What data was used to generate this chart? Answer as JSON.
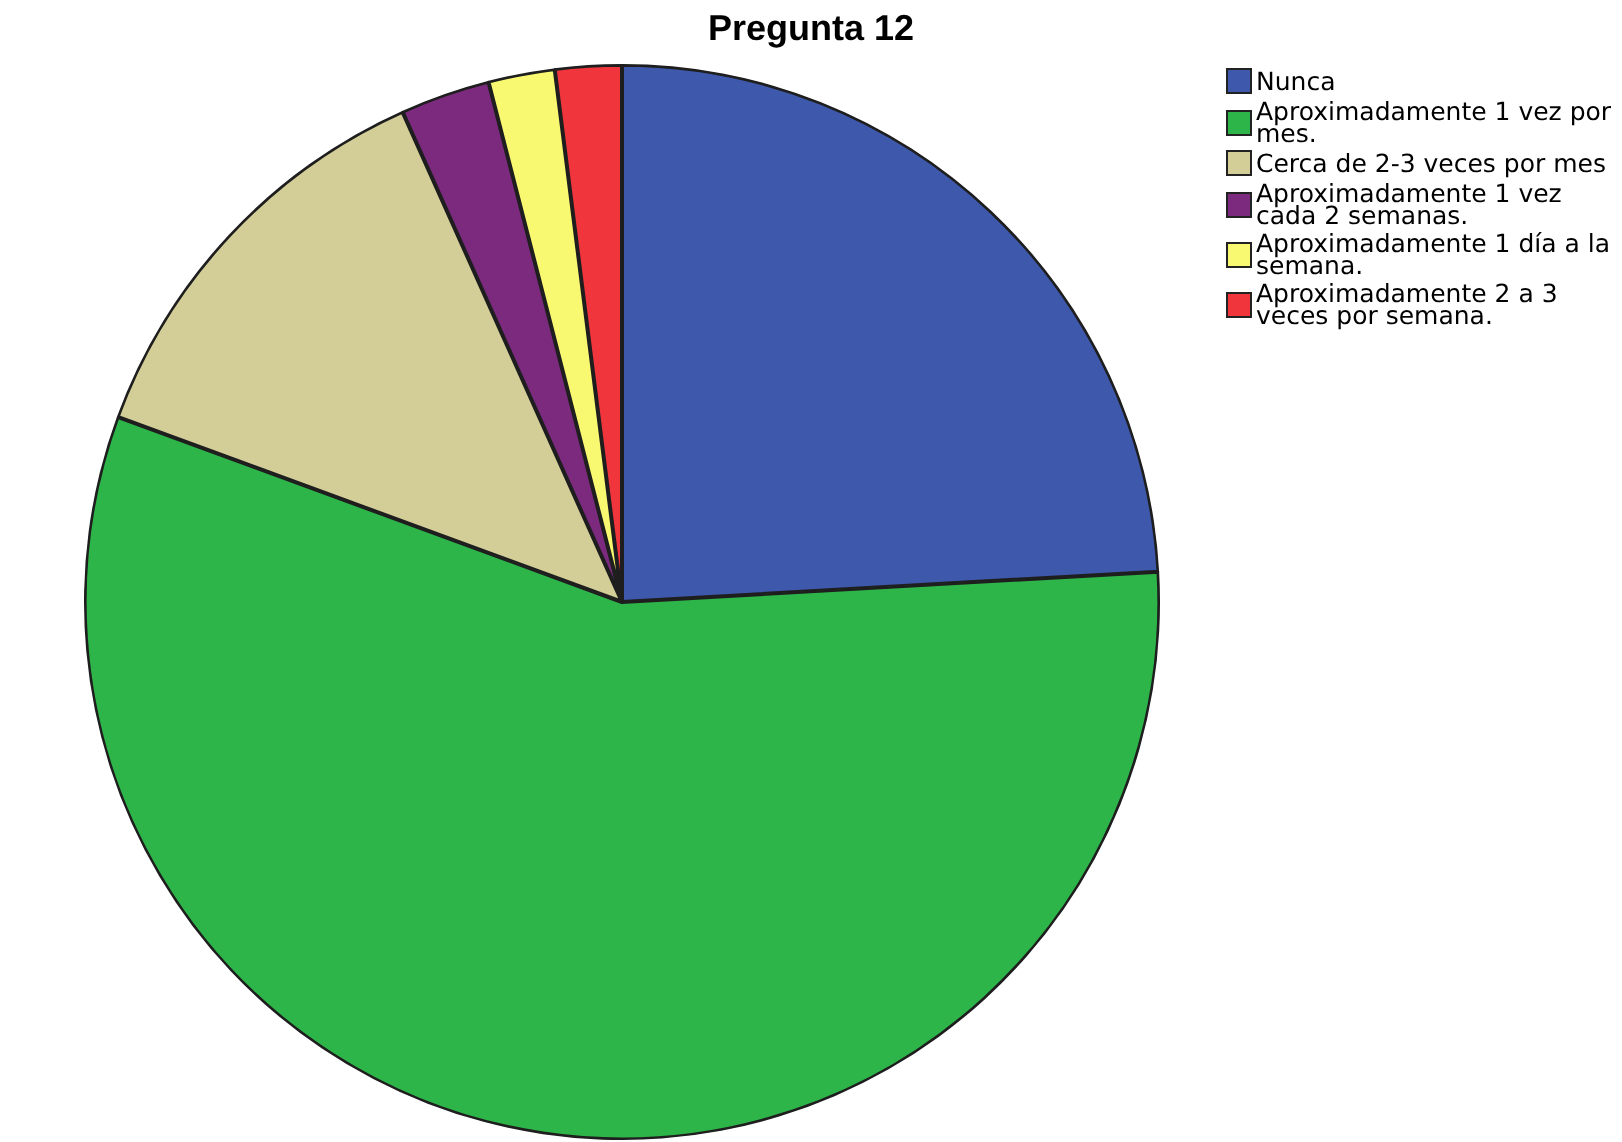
{
  "chart_data": {
    "type": "pie",
    "title": "Pregunta 12",
    "categories": [
      "Nunca",
      "Aproximadamente 1 vez por mes.",
      "Cerca de 2-3 veces por mes",
      "Aproximadamente 1 vez cada 2 semanas.",
      "Aproximadamente 1 día a la semana.",
      "Aproximadamente 2 a 3 veces por semana."
    ],
    "values": [
      24.1,
      56.5,
      12.7,
      2.7,
      2.0,
      2.0
    ],
    "colors": [
      "#3e58ac",
      "#2db54a",
      "#d3cd98",
      "#7b2a7e",
      "#f9f871",
      "#f0353d"
    ],
    "legend": "top right"
  }
}
